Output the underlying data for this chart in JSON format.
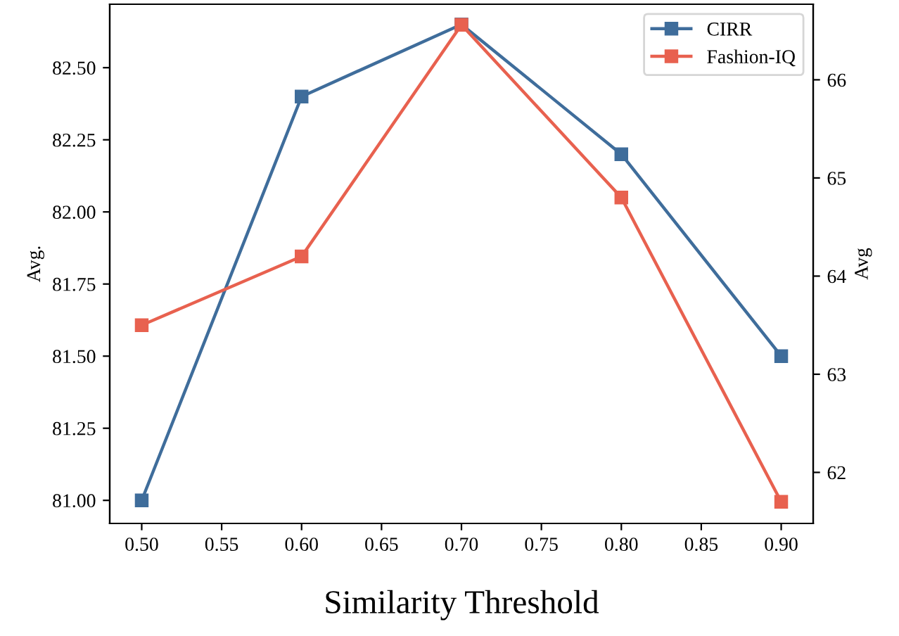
{
  "chart_data": {
    "type": "line",
    "xlabel": "Similarity Threshold",
    "ylabel": "Avg.",
    "y2label": "Avg",
    "x": [
      0.5,
      0.6,
      0.7,
      0.8,
      0.9
    ],
    "series": [
      {
        "name": "CIRR",
        "color": "#3f6d9b",
        "values": [
          81.0,
          82.4,
          82.65,
          82.2,
          81.5
        ]
      },
      {
        "name": "Fashion-IQ",
        "color": "#e8614f",
        "axis": "y2",
        "values": [
          63.5,
          64.2,
          66.56,
          64.8,
          61.7
        ]
      }
    ],
    "xlim": [
      0.48,
      0.92
    ],
    "xticks": [
      {
        "value": 0.5,
        "label": "0.50"
      },
      {
        "value": 0.55,
        "label": "0.55"
      },
      {
        "value": 0.6,
        "label": "0.60"
      },
      {
        "value": 0.65,
        "label": "0.65"
      },
      {
        "value": 0.7,
        "label": "0.70"
      },
      {
        "value": 0.75,
        "label": "0.75"
      },
      {
        "value": 0.8,
        "label": "0.80"
      },
      {
        "value": 0.85,
        "label": "0.85"
      },
      {
        "value": 0.9,
        "label": "0.90"
      }
    ],
    "ylim": [
      80.92,
      82.72
    ],
    "yticks": [
      {
        "value": 81.0,
        "label": "81.00"
      },
      {
        "value": 81.25,
        "label": "81.25"
      },
      {
        "value": 81.5,
        "label": "81.50"
      },
      {
        "value": 81.75,
        "label": "81.75"
      },
      {
        "value": 82.0,
        "label": "82.00"
      },
      {
        "value": 82.25,
        "label": "82.25"
      },
      {
        "value": 82.5,
        "label": "82.50"
      }
    ],
    "y2lim": [
      61.48,
      66.77
    ],
    "y2ticks": [
      62,
      63,
      64,
      65,
      66
    ],
    "legend": "top right",
    "marker": "square",
    "line_style": "solid",
    "grid": false
  }
}
